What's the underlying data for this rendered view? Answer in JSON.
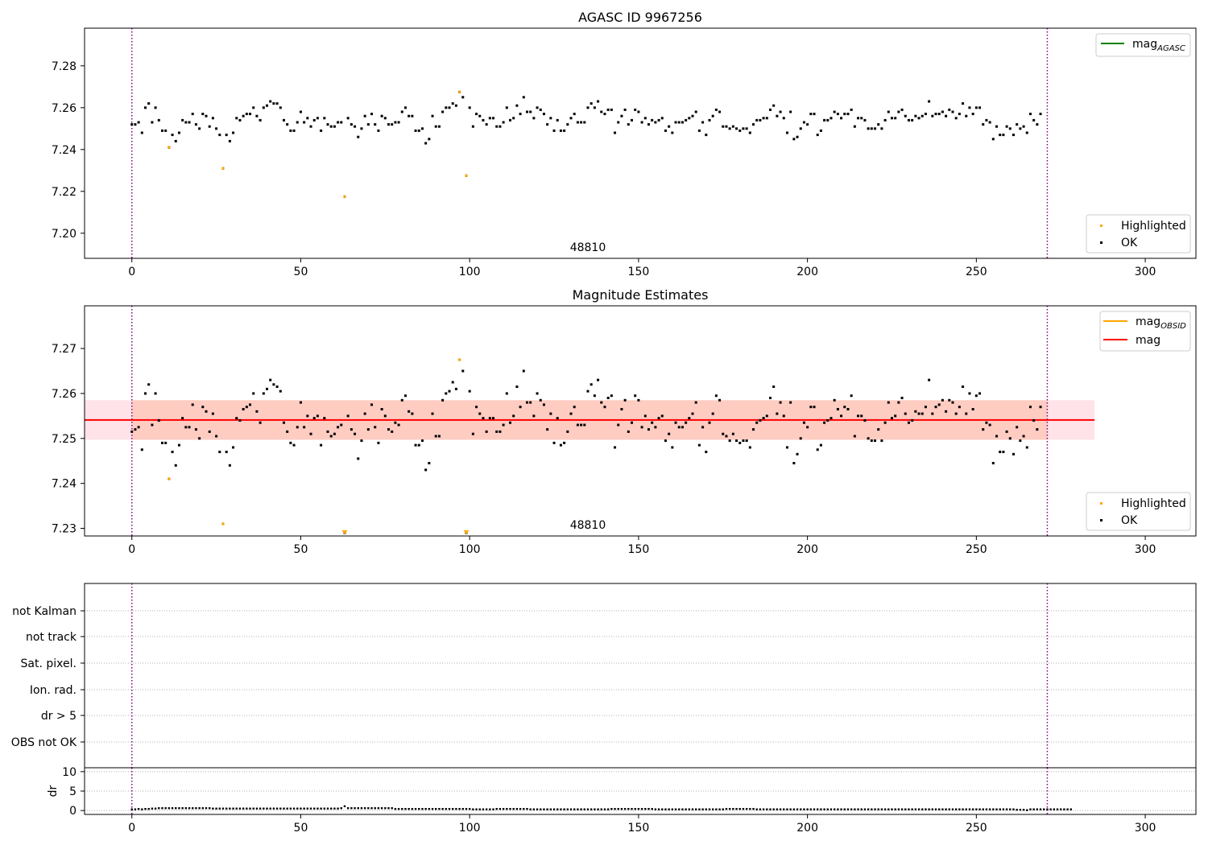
{
  "chart_data": [
    {
      "type": "scatter",
      "title": "AGASC ID 9967256",
      "xlim": [
        -14,
        315
      ],
      "ylim": [
        7.188,
        7.298
      ],
      "xticks": [
        0,
        50,
        100,
        150,
        200,
        250,
        300
      ],
      "yticks": [
        7.2,
        7.22,
        7.24,
        7.26,
        7.28
      ],
      "ytick_decimals": 2,
      "annotation": "48810",
      "annotation_x": 135,
      "vlines": [
        0,
        271
      ],
      "line_legend": [
        {
          "name": "mag",
          "sub": "AGASC",
          "color": "#008000"
        }
      ],
      "scatter_legend": [
        {
          "name": "Highlighted",
          "color": "#ffa500"
        },
        {
          "name": "OK",
          "color": "#000000"
        }
      ],
      "highlighted": [
        [
          11,
          7.241
        ],
        [
          27,
          7.231
        ],
        [
          63,
          7.2175
        ],
        [
          97,
          7.2675
        ],
        [
          99,
          7.2275
        ]
      ],
      "ok_series": [
        7.252,
        7.252,
        7.253,
        7.248,
        7.26,
        7.262,
        7.253,
        7.26,
        7.254,
        7.249,
        7.249,
        7.241,
        7.247,
        7.244,
        7.248,
        7.254,
        7.253,
        7.253,
        7.257,
        7.252,
        7.25,
        7.257,
        7.256,
        7.251,
        7.255,
        7.25,
        7.247,
        7.231,
        7.247,
        7.244,
        7.248,
        7.255,
        7.254,
        7.256,
        7.257,
        7.257,
        7.26,
        7.256,
        7.254,
        7.26,
        7.261,
        7.263,
        7.262,
        7.262,
        7.26,
        7.254,
        7.252,
        7.249,
        7.249,
        7.253,
        7.258,
        7.253,
        7.255,
        7.251,
        7.254,
        7.255,
        7.249,
        7.255,
        7.252,
        7.251,
        7.251,
        7.253,
        7.253,
        7.2175,
        7.255,
        7.252,
        7.251,
        7.246,
        7.25,
        7.256,
        7.252,
        7.257,
        7.252,
        7.249,
        7.256,
        7.255,
        7.252,
        7.252,
        7.253,
        7.253,
        7.258,
        7.26,
        7.256,
        7.256,
        7.249,
        7.249,
        7.25,
        7.243,
        7.245,
        7.256,
        7.251,
        7.251,
        7.258,
        7.26,
        7.26,
        7.262,
        7.261,
        7.2675,
        7.265,
        7.2275,
        7.26,
        7.251,
        7.257,
        7.256,
        7.254,
        7.252,
        7.255,
        7.255,
        7.251,
        7.251,
        7.253,
        7.26,
        7.254,
        7.255,
        7.261,
        7.257,
        7.265,
        7.258,
        7.258,
        7.255,
        7.26,
        7.259,
        7.257,
        7.252,
        7.255,
        7.249,
        7.254,
        7.249,
        7.249,
        7.252,
        7.255,
        7.257,
        7.253,
        7.253,
        7.253,
        7.26,
        7.262,
        7.26,
        7.263,
        7.258,
        7.257,
        7.259,
        7.259,
        7.248,
        7.253,
        7.256,
        7.259,
        7.252,
        7.254,
        7.259,
        7.258,
        7.253,
        7.255,
        7.252,
        7.254,
        7.253,
        7.254,
        7.255,
        7.249,
        7.251,
        7.248,
        7.253,
        7.253,
        7.253,
        7.254,
        7.255,
        7.256,
        7.258,
        7.249,
        7.253,
        7.247,
        7.254,
        7.256,
        7.259,
        7.258,
        7.251,
        7.251,
        7.25,
        7.251,
        7.25,
        7.249,
        7.25,
        7.25,
        7.248,
        7.252,
        7.254,
        7.254,
        7.255,
        7.255,
        7.259,
        7.261,
        7.256,
        7.258,
        7.255,
        7.248,
        7.258,
        7.245,
        7.246,
        7.25,
        7.253,
        7.252,
        7.257,
        7.257,
        7.247,
        7.249,
        7.254,
        7.254,
        7.255,
        7.258,
        7.257,
        7.255,
        7.257,
        7.257,
        7.259,
        7.251,
        7.255,
        7.255,
        7.254,
        7.25,
        7.25,
        7.25,
        7.252,
        7.25,
        7.254,
        7.258,
        7.255,
        7.255,
        7.258,
        7.259,
        7.256,
        7.254,
        7.254,
        7.256,
        7.255,
        7.256,
        7.257,
        7.263,
        7.256,
        7.257,
        7.257,
        7.258,
        7.256,
        7.259,
        7.258,
        7.255,
        7.257,
        7.262,
        7.256,
        7.26,
        7.257,
        7.26,
        7.26,
        7.252,
        7.254,
        7.253,
        7.245,
        7.251,
        7.247,
        7.247,
        7.251,
        7.25,
        7.247,
        7.252,
        7.25,
        7.251,
        7.248,
        7.257,
        7.254,
        7.252,
        7.257
      ]
    },
    {
      "type": "scatter",
      "title": "Magnitude Estimates",
      "xlim": [
        -14,
        315
      ],
      "ylim": [
        7.2283,
        7.2795
      ],
      "xticks": [
        0,
        50,
        100,
        150,
        200,
        250,
        300
      ],
      "yticks": [
        7.23,
        7.24,
        7.25,
        7.26,
        7.27
      ],
      "ytick_decimals": 2,
      "annotation": "48810",
      "annotation_x": 135,
      "vlines": [
        0,
        271
      ],
      "mag_line": 7.2541,
      "band_inner": [
        7.2497,
        7.2585
      ],
      "band_outer": [
        7.2497,
        7.2585
      ],
      "band_x": [
        -14,
        285
      ],
      "band_inner_x": [
        0,
        271
      ],
      "line_legend": [
        {
          "name": "mag",
          "sub": "OBSID",
          "color": "#ffa500"
        },
        {
          "name": "mag",
          "sub": "",
          "color": "#ff0000"
        }
      ],
      "scatter_legend": [
        {
          "name": "Highlighted",
          "color": "#ffa500"
        },
        {
          "name": "OK",
          "color": "#000000"
        }
      ],
      "highlighted": [
        [
          11,
          7.241
        ],
        [
          27,
          7.231
        ],
        [
          97,
          7.2675
        ]
      ],
      "offscale_markers": [
        63,
        99
      ],
      "ok_series": [
        7.2515,
        7.252,
        7.2525,
        7.2475,
        7.26,
        7.262,
        7.253,
        7.26,
        7.254,
        7.249,
        7.249,
        7.241,
        7.247,
        7.244,
        7.2485,
        7.2545,
        7.2525,
        7.2525,
        7.2575,
        7.252,
        7.25,
        7.257,
        7.256,
        7.2515,
        7.2555,
        7.2505,
        7.247,
        7.231,
        7.247,
        7.244,
        7.248,
        7.2545,
        7.254,
        7.2565,
        7.257,
        7.2575,
        7.26,
        7.256,
        7.2535,
        7.26,
        7.261,
        7.263,
        7.262,
        7.2615,
        7.2605,
        7.2535,
        7.2515,
        7.249,
        7.2485,
        7.2525,
        7.258,
        7.2525,
        7.255,
        7.251,
        7.2545,
        7.255,
        7.2485,
        7.2545,
        7.2515,
        7.2505,
        7.251,
        7.2525,
        7.253,
        7.229,
        7.255,
        7.252,
        7.251,
        7.2455,
        7.2495,
        7.2555,
        7.252,
        7.2575,
        7.2525,
        7.249,
        7.2565,
        7.255,
        7.252,
        7.2515,
        7.2535,
        7.253,
        7.2585,
        7.2595,
        7.256,
        7.2555,
        7.2485,
        7.2485,
        7.2495,
        7.243,
        7.2445,
        7.2555,
        7.2505,
        7.2505,
        7.2585,
        7.26,
        7.2605,
        7.2625,
        7.261,
        7.2675,
        7.265,
        7.229,
        7.2605,
        7.251,
        7.257,
        7.2555,
        7.2545,
        7.2515,
        7.2545,
        7.2545,
        7.2515,
        7.2515,
        7.253,
        7.26,
        7.2535,
        7.255,
        7.2615,
        7.257,
        7.265,
        7.258,
        7.258,
        7.255,
        7.26,
        7.2585,
        7.2575,
        7.252,
        7.2555,
        7.249,
        7.2545,
        7.2485,
        7.249,
        7.2515,
        7.2555,
        7.257,
        7.253,
        7.253,
        7.253,
        7.2605,
        7.262,
        7.2595,
        7.263,
        7.258,
        7.257,
        7.259,
        7.2595,
        7.248,
        7.253,
        7.2565,
        7.2585,
        7.2515,
        7.2535,
        7.2595,
        7.2585,
        7.2525,
        7.255,
        7.252,
        7.2535,
        7.2525,
        7.2545,
        7.255,
        7.2495,
        7.251,
        7.248,
        7.2535,
        7.2525,
        7.2525,
        7.2535,
        7.2545,
        7.2555,
        7.258,
        7.2485,
        7.2525,
        7.247,
        7.2535,
        7.2555,
        7.2595,
        7.2585,
        7.251,
        7.2505,
        7.2495,
        7.251,
        7.2495,
        7.249,
        7.2495,
        7.2495,
        7.248,
        7.252,
        7.2535,
        7.254,
        7.2545,
        7.255,
        7.259,
        7.2615,
        7.2555,
        7.258,
        7.255,
        7.248,
        7.258,
        7.2445,
        7.2465,
        7.25,
        7.2535,
        7.2525,
        7.257,
        7.257,
        7.2475,
        7.2485,
        7.2535,
        7.254,
        7.2545,
        7.2585,
        7.2565,
        7.255,
        7.257,
        7.2565,
        7.2595,
        7.2505,
        7.255,
        7.255,
        7.254,
        7.25,
        7.2495,
        7.2495,
        7.252,
        7.2495,
        7.2535,
        7.258,
        7.2545,
        7.255,
        7.258,
        7.259,
        7.2555,
        7.2535,
        7.254,
        7.256,
        7.2555,
        7.2555,
        7.257,
        7.263,
        7.2555,
        7.257,
        7.2575,
        7.2585,
        7.256,
        7.2585,
        7.258,
        7.2555,
        7.257,
        7.2615,
        7.2555,
        7.26,
        7.2565,
        7.2595,
        7.26,
        7.252,
        7.2535,
        7.253,
        7.2445,
        7.2505,
        7.247,
        7.247,
        7.2515,
        7.25,
        7.2465,
        7.2525,
        7.2495,
        7.2505,
        7.248,
        7.257,
        7.254,
        7.252,
        7.257
      ]
    },
    {
      "type": "scatter",
      "title": "",
      "xlim": [
        -14,
        315
      ],
      "categories": [
        "OBS not OK",
        "dr > 5",
        "Ion. rad.",
        "Sat. pixel.",
        "not track",
        "not Kalman"
      ],
      "vlines": [
        0,
        271
      ]
    },
    {
      "type": "scatter",
      "title": "",
      "xlim": [
        -14,
        315
      ],
      "ylim": [
        -1,
        11
      ],
      "ylabel": "dr",
      "xticks": [
        0,
        50,
        100,
        150,
        200,
        250,
        300
      ],
      "yticks": [
        0,
        5,
        10
      ],
      "ytick_decimals": 0,
      "vlines": [
        0,
        271
      ],
      "dr_series": [
        0.3,
        0.3,
        0.4,
        0.3,
        0.4,
        0.4,
        0.5,
        0.5,
        0.6,
        0.6,
        0.6,
        0.6,
        0.6,
        0.6,
        0.6,
        0.6,
        0.6,
        0.6,
        0.6,
        0.6,
        0.6,
        0.6,
        0.6,
        0.6,
        0.5,
        0.5,
        0.5,
        0.5,
        0.5,
        0.5,
        0.5,
        0.5,
        0.5,
        0.5,
        0.5,
        0.5,
        0.5,
        0.5,
        0.5,
        0.5,
        0.5,
        0.5,
        0.5,
        0.5,
        0.5,
        0.5,
        0.5,
        0.5,
        0.5,
        0.5,
        0.5,
        0.5,
        0.5,
        0.5,
        0.5,
        0.5,
        0.5,
        0.5,
        0.5,
        0.5,
        0.5,
        0.5,
        0.6,
        1.1,
        0.6,
        0.6,
        0.6,
        0.6,
        0.6,
        0.6,
        0.6,
        0.6,
        0.6,
        0.6,
        0.6,
        0.6,
        0.6,
        0.6,
        0.4,
        0.4,
        0.4,
        0.4,
        0.4,
        0.4,
        0.4,
        0.4,
        0.4,
        0.4,
        0.4,
        0.4,
        0.4,
        0.4,
        0.4,
        0.4,
        0.4,
        0.4,
        0.4,
        0.4,
        0.4,
        0.4,
        0.4,
        0.3,
        0.3,
        0.3,
        0.3,
        0.3,
        0.3,
        0.3,
        0.4,
        0.4,
        0.4,
        0.4,
        0.4,
        0.4,
        0.4,
        0.4,
        0.4,
        0.4,
        0.3,
        0.3,
        0.3,
        0.3,
        0.3,
        0.3,
        0.3,
        0.3,
        0.3,
        0.3,
        0.3,
        0.3,
        0.3,
        0.3,
        0.3,
        0.3,
        0.3,
        0.3,
        0.3,
        0.3,
        0.3,
        0.3,
        0.3,
        0.3,
        0.4,
        0.4,
        0.4,
        0.4,
        0.4,
        0.4,
        0.4,
        0.4,
        0.4,
        0.4,
        0.4,
        0.4,
        0.4,
        0.3,
        0.3,
        0.3,
        0.3,
        0.3,
        0.3,
        0.3,
        0.3,
        0.3,
        0.3,
        0.3,
        0.3,
        0.3,
        0.3,
        0.3,
        0.3,
        0.3,
        0.3,
        0.3,
        0.3,
        0.3,
        0.4,
        0.4,
        0.4,
        0.4,
        0.4,
        0.4,
        0.4,
        0.4,
        0.4,
        0.3,
        0.3,
        0.3,
        0.3,
        0.3,
        0.3,
        0.3,
        0.3,
        0.3,
        0.3,
        0.3,
        0.3,
        0.3,
        0.3,
        0.3,
        0.3,
        0.3,
        0.3,
        0.3,
        0.3,
        0.3,
        0.3,
        0.3,
        0.3,
        0.3,
        0.3,
        0.3,
        0.3,
        0.3,
        0.3,
        0.3,
        0.3,
        0.3,
        0.3,
        0.3,
        0.3,
        0.3,
        0.3,
        0.3,
        0.3,
        0.3,
        0.3,
        0.3,
        0.3,
        0.3,
        0.3,
        0.3,
        0.3,
        0.3,
        0.3,
        0.3,
        0.3,
        0.3,
        0.3,
        0.3,
        0.3,
        0.3,
        0.3,
        0.3,
        0.3,
        0.3,
        0.3,
        0.3,
        0.3,
        0.3,
        0.3,
        0.3,
        0.3,
        0.3,
        0.3,
        0.3,
        0.3,
        0.3,
        0.3,
        0.3,
        0.3,
        0.3,
        0.2,
        0.2,
        0.2,
        0.1,
        0.3,
        0.3,
        0.3,
        0.3,
        0.3,
        0.3,
        0.3,
        0.3,
        0.3,
        0.3,
        0.3,
        0.3,
        0.3
      ]
    }
  ]
}
